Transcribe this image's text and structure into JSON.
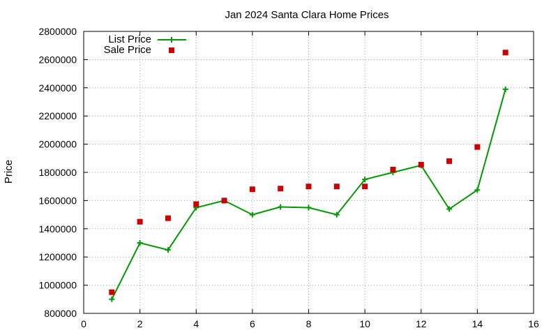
{
  "chart_data": {
    "type": "line",
    "title": "Jan 2024 Santa Clara Home Prices",
    "xlabel": "",
    "ylabel": "Price",
    "xlim": [
      0,
      16
    ],
    "ylim": [
      800000,
      2800000
    ],
    "x_ticks": [
      0,
      2,
      4,
      6,
      8,
      10,
      12,
      14,
      16
    ],
    "y_ticks": [
      800000,
      1000000,
      1200000,
      1400000,
      1600000,
      1800000,
      2000000,
      2200000,
      2400000,
      2600000,
      2800000
    ],
    "grid": true,
    "legend_position": "top-left",
    "series": [
      {
        "name": "List Price",
        "style": "line-with-plus-markers",
        "color": "#009900",
        "x": [
          1,
          2,
          3,
          4,
          5,
          6,
          7,
          8,
          9,
          10,
          11,
          12,
          13,
          14,
          15
        ],
        "y": [
          900000,
          1300000,
          1250000,
          1550000,
          1600000,
          1500000,
          1555000,
          1550000,
          1500000,
          1750000,
          1800000,
          1850000,
          1540000,
          1675000,
          2390000
        ]
      },
      {
        "name": "Sale Price",
        "style": "square-markers",
        "color": "#cc0000",
        "x": [
          1,
          2,
          3,
          4,
          5,
          6,
          7,
          8,
          9,
          10,
          11,
          12,
          13,
          14,
          15
        ],
        "y": [
          950000,
          1450000,
          1475000,
          1575000,
          1600000,
          1680000,
          1685000,
          1700000,
          1700000,
          1700000,
          1820000,
          1855000,
          1880000,
          1980000,
          2650000
        ]
      }
    ]
  }
}
